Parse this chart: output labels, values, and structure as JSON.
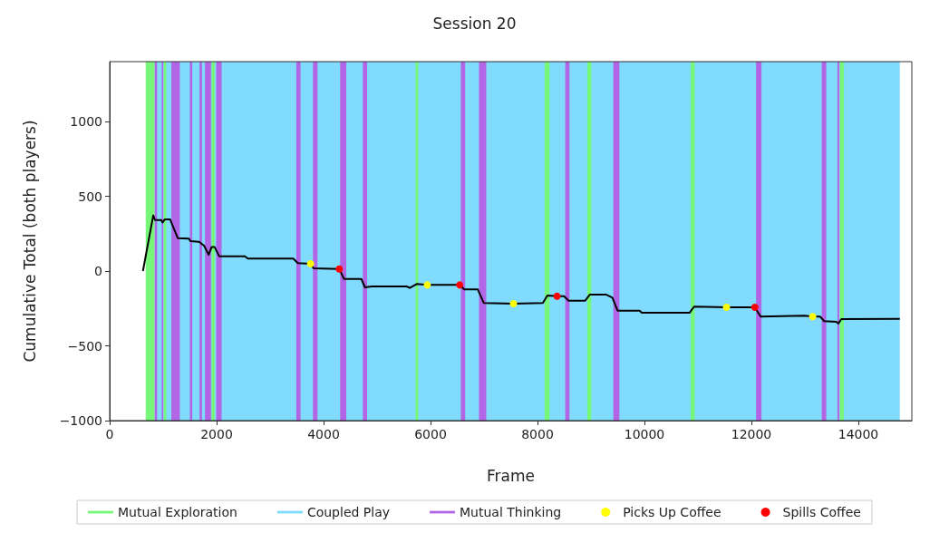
{
  "chart_data": {
    "type": "line",
    "title": "Session 20",
    "xlabel": "Frame",
    "ylabel": "Cumulative Total (both players)",
    "xlim": [
      0,
      15000
    ],
    "xticks": [
      0,
      2000,
      4000,
      6000,
      8000,
      10000,
      12000,
      14000
    ],
    "ylim": [
      -1000,
      1400
    ],
    "yticks": [
      -1000,
      -500,
      0,
      500,
      1000
    ],
    "grid": false,
    "legend": "bottom",
    "series": [
      {
        "color": "#000000",
        "marker": "none",
        "line_style": "solid",
        "x": [
          622,
          815,
          848,
          962,
          990,
          1030,
          1131,
          1273,
          1482,
          1510,
          1669,
          1765,
          1850,
          1906,
          1963,
          2048,
          2528,
          2585,
          3433,
          3518,
          3756,
          3813,
          4293,
          4383,
          4706,
          4774,
          4904,
          5244,
          5554,
          5611,
          5741,
          5939,
          6545,
          6630,
          6884,
          6997,
          7551,
          8100,
          8185,
          8366,
          8496,
          8581,
          8892,
          8977,
          9288,
          9401,
          9497,
          9910,
          9950,
          10334,
          10843,
          10928,
          11534,
          12065,
          12172,
          12993,
          13145,
          13287,
          13360,
          13587,
          13626,
          13683,
          14775
        ],
        "values": [
          0,
          372,
          341,
          341,
          325,
          345,
          345,
          220,
          216,
          200,
          196,
          170,
          109,
          160,
          160,
          99,
          99,
          83,
          83,
          53,
          48,
          18,
          14,
          -53,
          -53,
          -109,
          -103,
          -103,
          -103,
          -113,
          -87,
          -93,
          -93,
          -123,
          -123,
          -214,
          -218,
          -214,
          -164,
          -168,
          -168,
          -198,
          -198,
          -158,
          -158,
          -178,
          -265,
          -265,
          -279,
          -279,
          -279,
          -238,
          -242,
          -242,
          -305,
          -299,
          -305,
          -305,
          -335,
          -339,
          -351,
          -321,
          -319
        ]
      },
      {
        "type": "scatter",
        "name": "Picks Up Coffee",
        "color": "#ffff00",
        "marker": "circle",
        "x": [
          3756,
          5939,
          7551,
          11534,
          13145
        ],
        "values": [
          48,
          -93,
          -218,
          -242,
          -305
        ]
      },
      {
        "type": "scatter",
        "name": "Spills Coffee",
        "color": "#ff0000",
        "marker": "circle",
        "x": [
          4293,
          6545,
          8366,
          12065
        ],
        "values": [
          14,
          -93,
          -168,
          -242
        ]
      }
    ],
    "bands": [
      {
        "axis": "x",
        "from": 674,
        "to": 843,
        "label": "Mutual Exploration",
        "color": "#77f777"
      },
      {
        "axis": "x",
        "from": 843,
        "to": 14775,
        "label": "Coupled Play",
        "color": "#80dbfc"
      },
      {
        "axis": "x",
        "from": 843,
        "to": 886,
        "label": "Mutual Thinking",
        "color": "#b266e6"
      },
      {
        "axis": "x",
        "from": 973,
        "to": 1001,
        "color": "#b266e6"
      },
      {
        "axis": "x",
        "from": 1013,
        "to": 1058,
        "color": "#77f777"
      },
      {
        "axis": "x",
        "from": 1154,
        "to": 1312,
        "color": "#b266e6"
      },
      {
        "axis": "x",
        "from": 1499,
        "to": 1544,
        "color": "#b266e6"
      },
      {
        "axis": "x",
        "from": 1680,
        "to": 1726,
        "color": "#b266e6"
      },
      {
        "axis": "x",
        "from": 1782,
        "to": 1895,
        "color": "#b266e6"
      },
      {
        "axis": "x",
        "from": 1906,
        "to": 1963,
        "color": "#77f777"
      },
      {
        "axis": "x",
        "from": 1991,
        "to": 2093,
        "color": "#b266e6"
      },
      {
        "axis": "x",
        "from": 3490,
        "to": 3569,
        "color": "#b266e6"
      },
      {
        "axis": "x",
        "from": 3801,
        "to": 3886,
        "color": "#b266e6"
      },
      {
        "axis": "x",
        "from": 4310,
        "to": 4424,
        "color": "#b266e6"
      },
      {
        "axis": "x",
        "from": 4734,
        "to": 4814,
        "color": "#b266e6"
      },
      {
        "axis": "x",
        "from": 5719,
        "to": 5770,
        "color": "#77f777"
      },
      {
        "axis": "x",
        "from": 6567,
        "to": 6647,
        "color": "#b266e6"
      },
      {
        "axis": "x",
        "from": 6906,
        "to": 7042,
        "color": "#b266e6"
      },
      {
        "axis": "x",
        "from": 8134,
        "to": 8225,
        "color": "#77f777"
      },
      {
        "axis": "x",
        "from": 8519,
        "to": 8598,
        "color": "#b266e6"
      },
      {
        "axis": "x",
        "from": 8931,
        "to": 9005,
        "color": "#77f777"
      },
      {
        "axis": "x",
        "from": 9418,
        "to": 9531,
        "color": "#b266e6"
      },
      {
        "axis": "x",
        "from": 10866,
        "to": 10940,
        "color": "#77f777"
      },
      {
        "axis": "x",
        "from": 12087,
        "to": 12189,
        "color": "#b266e6"
      },
      {
        "axis": "x",
        "from": 13315,
        "to": 13400,
        "color": "#b266e6"
      },
      {
        "axis": "x",
        "from": 13609,
        "to": 13643,
        "color": "#b266e6"
      },
      {
        "axis": "x",
        "from": 13655,
        "to": 13728,
        "color": "#77f777"
      }
    ]
  }
}
